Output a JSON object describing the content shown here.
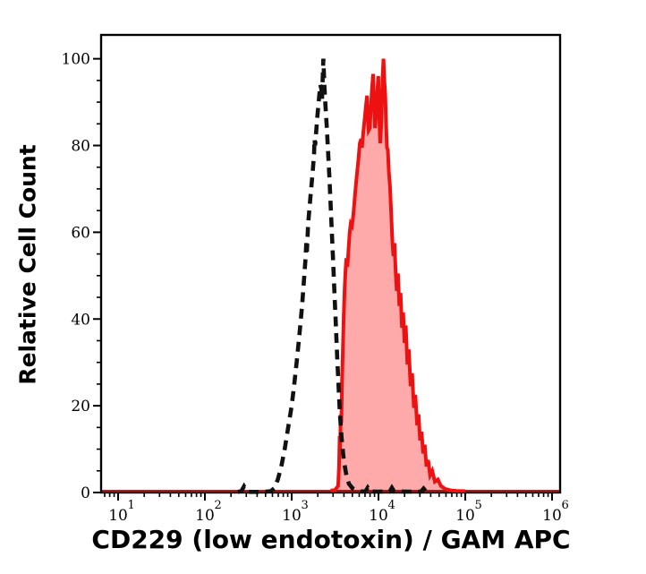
{
  "chart_data": {
    "type": "area",
    "subtype": "flow-cytometry-histogram-overlay",
    "title": "",
    "xlabel": "CD229 (low endotoxin) / GAM APC",
    "ylabel": "Relative Cell Count",
    "x_scale": "log10",
    "x_range_log": [
      0.804,
      6.093
    ],
    "x_decade_base": "10",
    "x_decades": [
      1,
      2,
      3,
      4,
      5,
      6
    ],
    "ylim": [
      0,
      105.5
    ],
    "y_ticks": [
      0,
      20,
      40,
      60,
      80,
      100
    ],
    "y_minor_step": 5,
    "grid": false,
    "legend": "none",
    "series": [
      {
        "name": "negative-control-dashed",
        "style": "dashed",
        "color": "#111111",
        "peak_log_x": 3.365,
        "peak_value": 100,
        "points": [
          [
            2.38,
            0.15
          ],
          [
            2.42,
            0.3
          ],
          [
            2.45,
            1.4
          ],
          [
            2.48,
            0.3
          ],
          [
            2.52,
            0.15
          ],
          [
            2.62,
            0.15
          ],
          [
            2.7,
            0.2
          ],
          [
            2.76,
            0.3
          ],
          [
            2.8,
            1
          ],
          [
            2.84,
            3
          ],
          [
            2.88,
            6
          ],
          [
            2.92,
            10
          ],
          [
            2.96,
            15
          ],
          [
            3.0,
            20
          ],
          [
            3.03,
            25
          ],
          [
            3.06,
            30.5
          ],
          [
            3.09,
            36.5
          ],
          [
            3.12,
            43
          ],
          [
            3.145,
            50
          ],
          [
            3.16,
            54
          ],
          [
            3.168,
            57.5
          ],
          [
            3.175,
            55.5
          ],
          [
            3.19,
            62
          ],
          [
            3.215,
            68
          ],
          [
            3.24,
            73.5
          ],
          [
            3.258,
            78
          ],
          [
            3.263,
            81.5
          ],
          [
            3.27,
            80
          ],
          [
            3.295,
            86.5
          ],
          [
            3.315,
            91
          ],
          [
            3.33,
            94
          ],
          [
            3.342,
            93
          ],
          [
            3.35,
            90.5
          ],
          [
            3.356,
            94.5
          ],
          [
            3.365,
            100
          ],
          [
            3.376,
            94
          ],
          [
            3.39,
            89
          ],
          [
            3.405,
            84
          ],
          [
            3.42,
            78.5
          ],
          [
            3.435,
            72.5
          ],
          [
            3.45,
            66
          ],
          [
            3.465,
            59
          ],
          [
            3.48,
            52
          ],
          [
            3.495,
            45
          ],
          [
            3.51,
            38
          ],
          [
            3.525,
            31
          ],
          [
            3.54,
            24.5
          ],
          [
            3.555,
            18.5
          ],
          [
            3.575,
            12.5
          ],
          [
            3.6,
            7.5
          ],
          [
            3.63,
            4
          ],
          [
            3.66,
            2
          ],
          [
            3.7,
            1
          ],
          [
            3.75,
            0.5
          ],
          [
            3.8,
            0.25
          ],
          [
            3.85,
            0.25
          ],
          [
            3.875,
            1.1
          ],
          [
            3.9,
            0.25
          ],
          [
            4.0,
            0.2
          ],
          [
            4.13,
            0.25
          ],
          [
            4.155,
            1.1
          ],
          [
            4.18,
            0.25
          ],
          [
            4.35,
            0.2
          ],
          [
            4.49,
            0.2
          ],
          [
            4.52,
            0.9
          ],
          [
            4.55,
            0.2
          ],
          [
            4.6,
            0.15
          ]
        ]
      },
      {
        "name": "cd229-gam-apc-red",
        "style": "solid-filled",
        "color": "#ee1111",
        "fill": "#ffaaaa",
        "peak_log_x": 4.058,
        "peak_value": 100,
        "stroke_log_range": [
          3.44,
          5.15
        ],
        "points": [
          [
            0.804,
            0.3
          ],
          [
            1.5,
            0.3
          ],
          [
            2.3,
            0.3
          ],
          [
            2.8,
            0.35
          ],
          [
            3.1,
            0.4
          ],
          [
            3.3,
            0.4
          ],
          [
            3.45,
            0.45
          ],
          [
            3.5,
            0.6
          ],
          [
            3.535,
            1.5
          ],
          [
            3.545,
            6
          ],
          [
            3.553,
            13
          ],
          [
            3.558,
            10
          ],
          [
            3.565,
            18
          ],
          [
            3.572,
            16
          ],
          [
            3.58,
            26
          ],
          [
            3.59,
            33
          ],
          [
            3.6,
            41
          ],
          [
            3.61,
            47
          ],
          [
            3.62,
            51
          ],
          [
            3.63,
            54
          ],
          [
            3.642,
            52
          ],
          [
            3.655,
            56
          ],
          [
            3.668,
            60
          ],
          [
            3.68,
            62
          ],
          [
            3.695,
            61.5
          ],
          [
            3.71,
            64
          ],
          [
            3.725,
            67.5
          ],
          [
            3.74,
            71
          ],
          [
            3.755,
            74
          ],
          [
            3.77,
            77
          ],
          [
            3.785,
            80.5
          ],
          [
            3.8,
            81.5
          ],
          [
            3.81,
            79.5
          ],
          [
            3.825,
            83
          ],
          [
            3.84,
            86
          ],
          [
            3.855,
            89
          ],
          [
            3.868,
            91.5
          ],
          [
            3.878,
            86
          ],
          [
            3.887,
            83.5
          ],
          [
            3.9,
            84
          ],
          [
            3.91,
            88
          ],
          [
            3.925,
            93
          ],
          [
            3.938,
            96.5
          ],
          [
            3.95,
            89
          ],
          [
            3.96,
            84
          ],
          [
            3.972,
            87
          ],
          [
            3.985,
            92
          ],
          [
            3.998,
            96
          ],
          [
            4.01,
            86
          ],
          [
            4.02,
            80.5
          ],
          [
            4.033,
            85
          ],
          [
            4.048,
            96
          ],
          [
            4.058,
            100
          ],
          [
            4.068,
            95
          ],
          [
            4.078,
            91.5
          ],
          [
            4.088,
            85
          ],
          [
            4.098,
            79.5
          ],
          [
            4.108,
            79
          ],
          [
            4.12,
            74
          ],
          [
            4.133,
            70.5
          ],
          [
            4.148,
            64
          ],
          [
            4.16,
            58
          ],
          [
            4.172,
            54.5
          ],
          [
            4.185,
            57.5
          ],
          [
            4.198,
            51
          ],
          [
            4.21,
            46.5
          ],
          [
            4.225,
            50.5
          ],
          [
            4.24,
            43
          ],
          [
            4.255,
            46
          ],
          [
            4.27,
            38
          ],
          [
            4.285,
            41.5
          ],
          [
            4.3,
            34.5
          ],
          [
            4.315,
            38.5
          ],
          [
            4.333,
            29.5
          ],
          [
            4.35,
            33
          ],
          [
            4.37,
            24.5
          ],
          [
            4.388,
            27.5
          ],
          [
            4.408,
            19.5
          ],
          [
            4.425,
            22.5
          ],
          [
            4.445,
            15.5
          ],
          [
            4.462,
            18
          ],
          [
            4.48,
            12
          ],
          [
            4.497,
            14
          ],
          [
            4.515,
            9
          ],
          [
            4.533,
            11
          ],
          [
            4.553,
            6
          ],
          [
            4.572,
            7.5
          ],
          [
            4.595,
            4
          ],
          [
            4.62,
            5
          ],
          [
            4.65,
            2.5
          ],
          [
            4.685,
            3
          ],
          [
            4.72,
            1.5
          ],
          [
            4.77,
            0.8
          ],
          [
            4.83,
            0.5
          ],
          [
            4.9,
            0.35
          ],
          [
            5.0,
            0.3
          ],
          [
            5.5,
            0.3
          ],
          [
            6.09,
            0.3
          ]
        ]
      }
    ]
  },
  "colors": {
    "background": "#ffffff",
    "frame": "#000000",
    "tick": "#000000",
    "tick_label": "#000000",
    "axis_label": "#000000",
    "dashed_line": "#111111",
    "red_line": "#ee1111",
    "red_fill": "#ffaaaa",
    "baseline_dark_red": "#8b1412"
  }
}
